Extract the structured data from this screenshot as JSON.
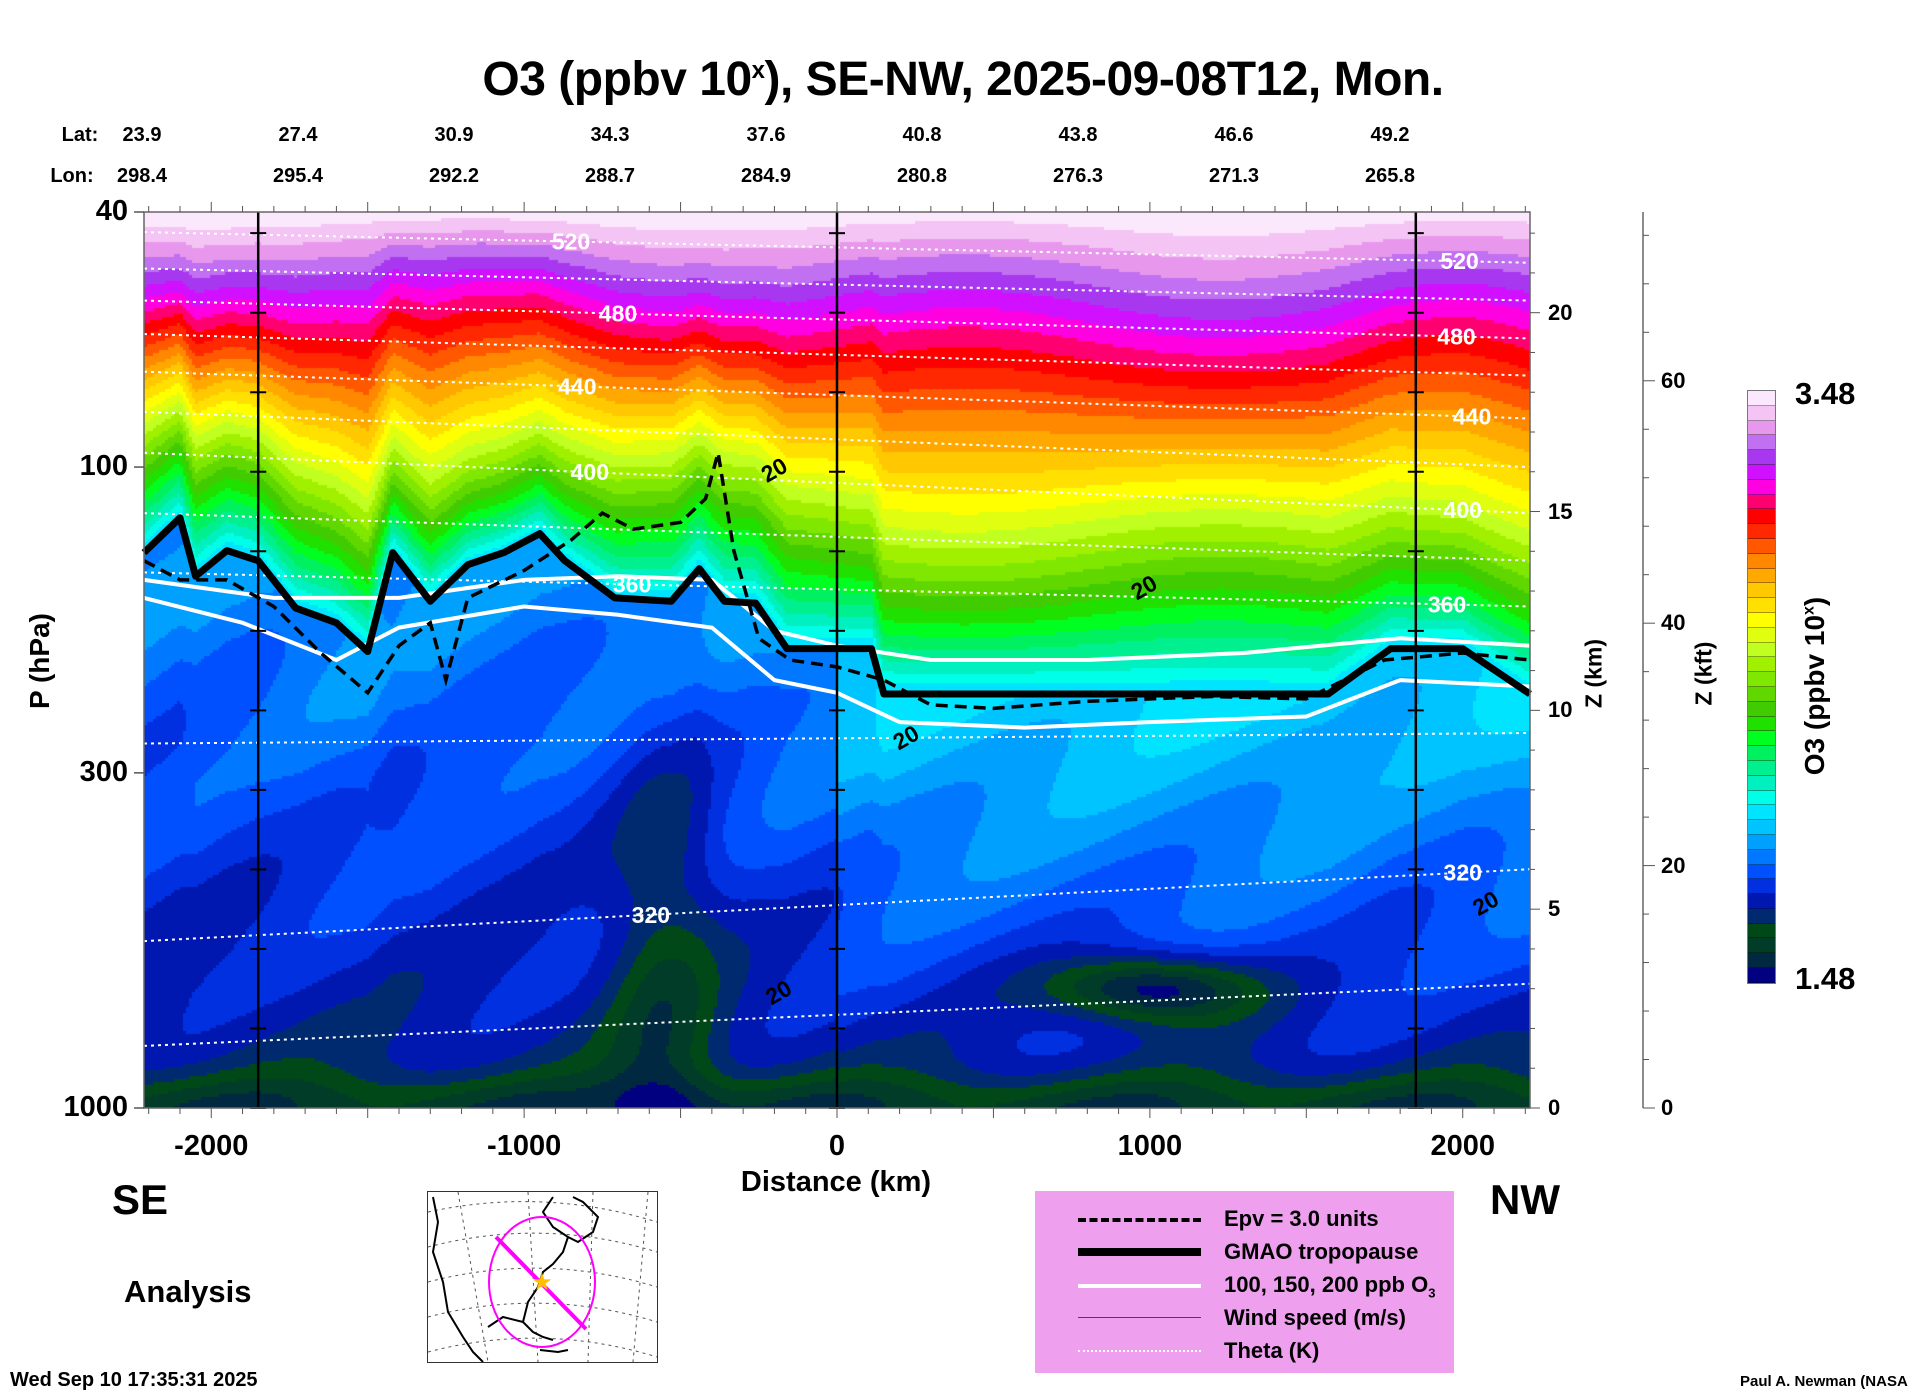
{
  "header": {
    "title_main": "O3 (ppbv 10",
    "title_sup": "x",
    "title_rest": "), SE-NW, 2025-09-08T12, Mon.",
    "lat_label": "Lat:",
    "lon_label": "Lon:",
    "lat": [
      "23.9",
      "27.4",
      "30.9",
      "34.3",
      "37.6",
      "40.8",
      "43.8",
      "46.6",
      "49.2"
    ],
    "lon": [
      "298.4",
      "295.4",
      "292.2",
      "288.7",
      "284.9",
      "280.8",
      "276.3",
      "271.3",
      "265.8"
    ]
  },
  "footer": {
    "left_dir": "SE",
    "right_dir": "NW",
    "mode": "Analysis",
    "timestamp": "Wed Sep 10 17:35:31 2025",
    "credit": "Paul A. Newman (NASA"
  },
  "legend": {
    "items": [
      {
        "label": "Epv = 3.0 units",
        "style": "dashed"
      },
      {
        "label": "GMAO tropopause",
        "style": "thick"
      },
      {
        "label": "100, 150, 200 ppb O",
        "sub": "3",
        "style": "white"
      },
      {
        "label": "Wind speed (m/s)",
        "style": "thin"
      },
      {
        "label": "Theta (K)",
        "style": "dotted"
      }
    ],
    "bg_color": "#ee9fee"
  },
  "chart_data": {
    "type": "heatmap",
    "title": "O3 (ppbv 10^x), SE-NW, 2025-09-08T12, Mon.",
    "xlabel": "Distance (km)",
    "ylabel": "P (hPa)",
    "y2label": "Z (km)",
    "y3label": "Z (kft)",
    "colorbar_label": "O3 (ppbv 10",
    "colorbar_label_sup": "x",
    "colorbar_label_end": ")",
    "xlim": [
      -2215,
      2215
    ],
    "ylim": [
      1000,
      40
    ],
    "yscale": "log",
    "x_ticks": [
      -2000,
      -1000,
      0,
      1000,
      2000
    ],
    "x_tick_labels": [
      "-2000",
      "-1000",
      "0",
      "1000",
      "2000"
    ],
    "y_ticks": [
      40,
      100,
      300,
      1000
    ],
    "y_tick_labels": [
      "40",
      "100",
      "300",
      "1000"
    ],
    "z_km_ticks": [
      0,
      5,
      10,
      15,
      20
    ],
    "z_km_tick_labels": [
      "0",
      "5",
      "10",
      "15",
      "20"
    ],
    "z_kft_ticks": [
      0,
      20,
      40,
      60
    ],
    "z_kft_tick_labels": [
      "0",
      "20",
      "40",
      "60"
    ],
    "section_marker_km": [
      -1850,
      0,
      1850
    ],
    "colorbar": {
      "min": 1.48,
      "max": 3.48,
      "step": 0.05,
      "min_label": "1.48",
      "max_label": "3.48",
      "colors": [
        "#000080",
        "#002840",
        "#003c28",
        "#004818",
        "#002a70",
        "#0018b0",
        "#0030e0",
        "#0050ff",
        "#0078ff",
        "#00a0ff",
        "#00c4ff",
        "#00e4ff",
        "#00ffe8",
        "#00f0c0",
        "#00f090",
        "#00f060",
        "#00ff20",
        "#20e000",
        "#40cc00",
        "#60d800",
        "#80e800",
        "#a0f000",
        "#c0ff20",
        "#e0ff10",
        "#ffff00",
        "#ffe000",
        "#ffc800",
        "#ffa800",
        "#ff8800",
        "#ff5800",
        "#ff2800",
        "#ff0000",
        "#ff0070",
        "#ff00e0",
        "#d010ff",
        "#a838f0",
        "#c070f0",
        "#e898ec",
        "#f4c4f4",
        "#fce8fc"
      ]
    },
    "tropopause": [
      [
        -2215,
        136
      ],
      [
        -2100,
        120
      ],
      [
        -2050,
        148
      ],
      [
        -1950,
        135
      ],
      [
        -1850,
        140
      ],
      [
        -1730,
        166
      ],
      [
        -1600,
        175
      ],
      [
        -1500,
        194
      ],
      [
        -1420,
        136
      ],
      [
        -1300,
        162
      ],
      [
        -1180,
        142
      ],
      [
        -1065,
        136
      ],
      [
        -950,
        127
      ],
      [
        -870,
        140
      ],
      [
        -710,
        160
      ],
      [
        -530,
        162
      ],
      [
        -440,
        144
      ],
      [
        -360,
        162
      ],
      [
        -260,
        163
      ],
      [
        -160,
        192
      ],
      [
        110,
        192
      ],
      [
        150,
        226
      ],
      [
        1570,
        226
      ],
      [
        1770,
        192
      ],
      [
        2000,
        192
      ],
      [
        2215,
        226
      ]
    ],
    "epv_3": [
      [
        -2215,
        140
      ],
      [
        -2100,
        150
      ],
      [
        -1950,
        150
      ],
      [
        -1800,
        165
      ],
      [
        -1650,
        195
      ],
      [
        -1500,
        225
      ],
      [
        -1400,
        190
      ],
      [
        -1300,
        175
      ],
      [
        -1250,
        215
      ],
      [
        -1180,
        160
      ],
      [
        -1000,
        145
      ],
      [
        -850,
        130
      ],
      [
        -750,
        118
      ],
      [
        -650,
        125
      ],
      [
        -500,
        122
      ],
      [
        -420,
        112
      ],
      [
        -380,
        95
      ],
      [
        -330,
        135
      ],
      [
        -250,
        185
      ],
      [
        -150,
        200
      ],
      [
        0,
        205
      ],
      [
        150,
        215
      ],
      [
        300,
        235
      ],
      [
        500,
        238
      ],
      [
        800,
        232
      ],
      [
        1200,
        228
      ],
      [
        1500,
        230
      ],
      [
        1750,
        200
      ],
      [
        2000,
        195
      ],
      [
        2215,
        200
      ]
    ],
    "o3_contours": [
      {
        "level_ppb": 100,
        "points": [
          [
            -2215,
            160
          ],
          [
            -1900,
            175
          ],
          [
            -1600,
            200
          ],
          [
            -1400,
            178
          ],
          [
            -1000,
            165
          ],
          [
            -700,
            170
          ],
          [
            -400,
            178
          ],
          [
            -200,
            215
          ],
          [
            0,
            225
          ],
          [
            200,
            250
          ],
          [
            600,
            255
          ],
          [
            1000,
            250
          ],
          [
            1500,
            245
          ],
          [
            1800,
            215
          ],
          [
            2215,
            220
          ]
        ]
      },
      {
        "level_ppb": 150,
        "points": [
          [
            -2215,
            150
          ],
          [
            -1800,
            160
          ],
          [
            -1400,
            160
          ],
          [
            -1000,
            150
          ],
          [
            -700,
            148
          ],
          [
            -400,
            150
          ],
          [
            -200,
            180
          ],
          [
            0,
            190
          ],
          [
            300,
            200
          ],
          [
            800,
            200
          ],
          [
            1300,
            195
          ],
          [
            1800,
            185
          ],
          [
            2215,
            190
          ]
        ]
      }
    ],
    "theta": [
      {
        "theta": 520,
        "p_left": 43,
        "p_right": 48,
        "labels_km": [
          -850,
          1990
        ]
      },
      {
        "theta": 500,
        "p_left": 49,
        "p_right": 55,
        "labels_km": []
      },
      {
        "theta": 480,
        "p_left": 55,
        "p_right": 63,
        "labels_km": [
          -700,
          1980
        ]
      },
      {
        "theta": 460,
        "p_left": 62,
        "p_right": 72,
        "labels_km": []
      },
      {
        "theta": 440,
        "p_left": 71,
        "p_right": 84,
        "labels_km": [
          -830,
          2030
        ]
      },
      {
        "theta": 420,
        "p_left": 82,
        "p_right": 100,
        "labels_km": []
      },
      {
        "theta": 400,
        "p_left": 95,
        "p_right": 118,
        "labels_km": [
          -790,
          2000
        ]
      },
      {
        "theta": 380,
        "p_left": 118,
        "p_right": 140,
        "labels_km": []
      },
      {
        "theta": 360,
        "p_left": 146,
        "p_right": 165,
        "labels_km": [
          -655,
          1950
        ]
      },
      {
        "theta": 340,
        "p_left": 270,
        "p_right": 260,
        "labels_km": []
      },
      {
        "theta": 320,
        "p_left": 549,
        "p_right": 424,
        "labels_km": [
          -595,
          2000
        ]
      },
      {
        "theta": 310,
        "p_left": 800,
        "p_right": 640,
        "labels_km": []
      }
    ],
    "wind_labels": [
      {
        "text": "20",
        "km": -201,
        "p": 101
      },
      {
        "text": "20",
        "km": 981,
        "p": 154
      },
      {
        "text": "20",
        "km": 220,
        "p": 264
      },
      {
        "text": "20",
        "km": 2073,
        "p": 479
      },
      {
        "text": "20",
        "km": -187,
        "p": 660
      }
    ]
  }
}
